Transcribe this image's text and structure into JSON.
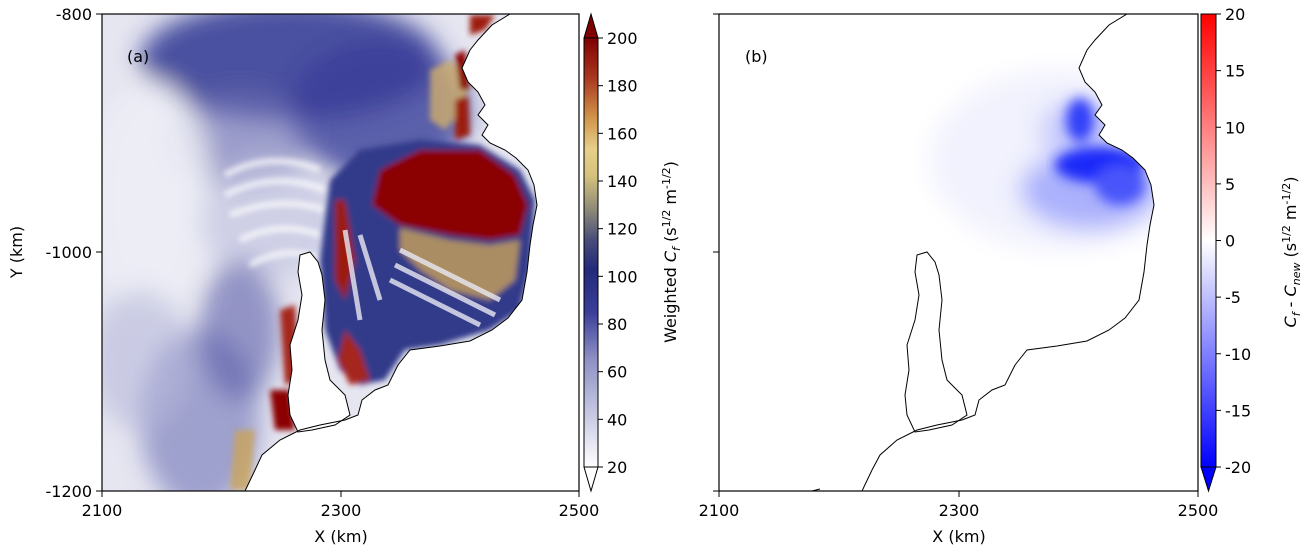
{
  "chart_data": [
    {
      "type": "heatmap",
      "panel_label": "(a)",
      "xlabel": "X (km)",
      "ylabel": "Y (km)",
      "xlim": [
        2100,
        2500
      ],
      "ylim": [
        -1200,
        -800
      ],
      "x_ticks": [
        "2100",
        "2300",
        "2500"
      ],
      "y_ticks": [
        "-800",
        "-1000",
        "-1200"
      ],
      "colorbar": {
        "label_prefix": "Weighted ",
        "label_symbol": "C",
        "label_sub": "f",
        "label_units": " (s",
        "label_exp1": "1/2",
        "label_mid": " m",
        "label_exp2": "-1/2",
        "label_end": ")",
        "min": 20,
        "max": 200,
        "ticks": [
          "20",
          "40",
          "60",
          "80",
          "100",
          "120",
          "140",
          "160",
          "180",
          "200"
        ],
        "extend": "both",
        "colormap": [
          "#ffffff",
          "#c7c9e2",
          "#8f91c5",
          "#3b3f99",
          "#1f2a7a",
          "#2a3170",
          "#7a7a70",
          "#d6c27c",
          "#e8d58e",
          "#c8873e",
          "#a5301e",
          "#7f0000"
        ]
      }
    },
    {
      "type": "heatmap",
      "panel_label": "(b)",
      "xlabel": "X (km)",
      "xlim": [
        2100,
        2500
      ],
      "ylim": [
        -1200,
        -800
      ],
      "x_ticks": [
        "2100",
        "2300",
        "2500"
      ],
      "colorbar": {
        "label_symbol1": "C",
        "label_sub1": "f",
        "label_dash": " - ",
        "label_symbol2": "C",
        "label_sub2": "new",
        "label_units": " (s",
        "label_exp1": "1/2",
        "label_mid": " m",
        "label_exp2": "-1/2",
        "label_end": ")",
        "min": -20,
        "max": 20,
        "ticks": [
          "20",
          "15",
          "10",
          "5",
          "0",
          "-5",
          "-10",
          "-15",
          "-20"
        ],
        "extend": "min",
        "colormap": [
          "#0000ff",
          "#ffffff",
          "#ff0000"
        ]
      }
    }
  ]
}
